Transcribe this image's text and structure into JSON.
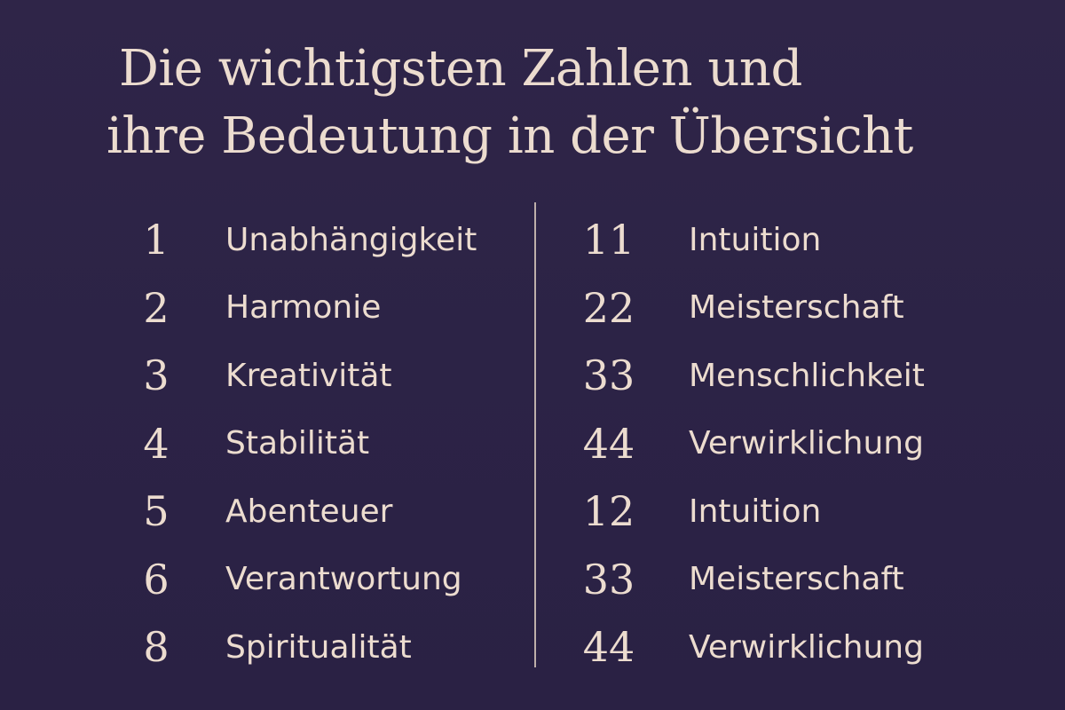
{
  "title": {
    "line1": "Die wichtigsten Zahlen und",
    "line2": "ihre Bedeutung in der Übersicht"
  },
  "left_column": [
    {
      "number": "1",
      "meaning": "Unabhängigkeit"
    },
    {
      "number": "2",
      "meaning": "Harmonie"
    },
    {
      "number": "3",
      "meaning": "Kreativität"
    },
    {
      "number": "4",
      "meaning": "Stabilität"
    },
    {
      "number": "5",
      "meaning": "Abenteuer"
    },
    {
      "number": "6",
      "meaning": "Verantwortung"
    },
    {
      "number": "8",
      "meaning": "Spiritualität"
    }
  ],
  "right_column": [
    {
      "number": "11",
      "meaning": "Intuition"
    },
    {
      "number": "22",
      "meaning": "Meisterschaft"
    },
    {
      "number": "33",
      "meaning": "Menschlichkeit"
    },
    {
      "number": "44",
      "meaning": "Verwirklichung"
    },
    {
      "number": "12",
      "meaning": "Intuition"
    },
    {
      "number": "33",
      "meaning": "Meisterschaft"
    },
    {
      "number": "44",
      "meaning": "Verwirklichung"
    }
  ],
  "colors": {
    "background": "#2c2346",
    "text": "#ecdccf"
  }
}
